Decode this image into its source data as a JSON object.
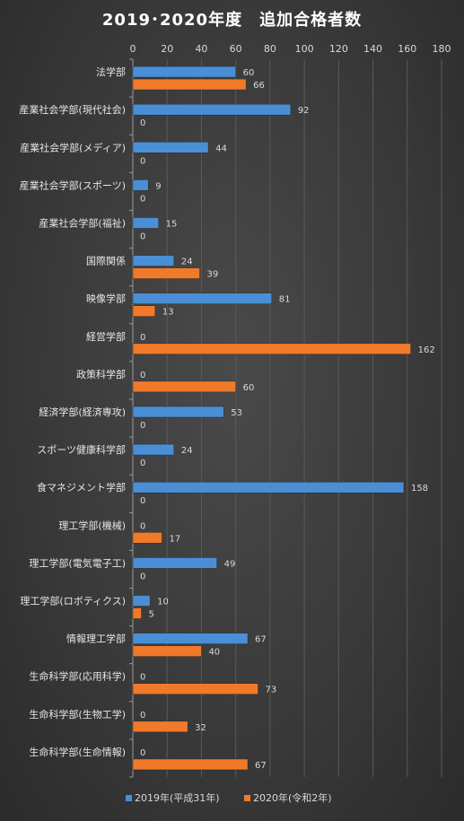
{
  "chart_data": {
    "type": "bar",
    "orientation": "horizontal",
    "title": "2019･2020年度　追加合格者数",
    "xlim": [
      0,
      180
    ],
    "x_ticks": [
      0,
      20,
      40,
      60,
      80,
      100,
      120,
      140,
      160,
      180
    ],
    "x_axis_position": "top",
    "grid": true,
    "legend_position": "bottom",
    "categories": [
      "法学部",
      "産業社会学部(現代社会)",
      "産業社会学部(メディア)",
      "産業社会学部(スポーツ)",
      "産業社会学部(福祉)",
      "国際関係",
      "映像学部",
      "経営学部",
      "政策科学部",
      "経済学部(経済専攻)",
      "スポーツ健康科学部",
      "食マネジメント学部",
      "理工学部(機械)",
      "理工学部(電気電子工)",
      "理工学部(ロボティクス)",
      "情報理工学部",
      "生命科学部(応用科学)",
      "生命科学部(生物工学)",
      "生命科学部(生命情報)"
    ],
    "series": [
      {
        "name": "2019年(平成31年)",
        "color": "#4a8fd6",
        "values": [
          60,
          92,
          44,
          9,
          15,
          24,
          81,
          0,
          0,
          53,
          24,
          158,
          0,
          49,
          10,
          67,
          0,
          0,
          0
        ]
      },
      {
        "name": "2020年(令和2年)",
        "color": "#f07a2a",
        "values": [
          66,
          0,
          0,
          0,
          0,
          39,
          13,
          162,
          60,
          0,
          0,
          0,
          17,
          0,
          5,
          40,
          73,
          32,
          67
        ]
      }
    ]
  }
}
